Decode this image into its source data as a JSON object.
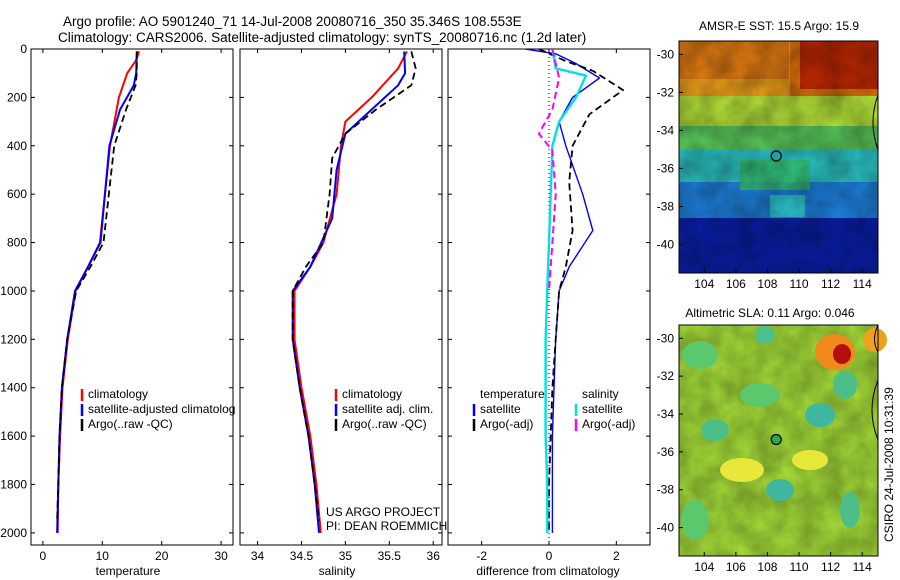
{
  "header": {
    "line1": "Argo profile: AO 5901240_71 14-Jul-2008 20080716_350 35.346S 108.553E",
    "line2": "Climatology: CARS2006. Satellite-adjusted climatology: synTS_20080716.nc (1.2d later)"
  },
  "side_text": "CSIRO 24-Jul-2008 10:31:39",
  "colors": {
    "climatology": "#ff0000",
    "satellite": "#0000ff",
    "argo": "#000000",
    "sat_salinity": "#00e0e0",
    "argo_salinity": "#ff00ff"
  },
  "chart_data": [
    {
      "type": "line",
      "panel": "temperature",
      "xlabel": "temperature",
      "ylabel": "",
      "xlim": [
        -2,
        32
      ],
      "ylim": [
        2050,
        0
      ],
      "xticks": [
        "0",
        "10",
        "20",
        "30"
      ],
      "yticks": [
        "0",
        "200",
        "400",
        "600",
        "800",
        "1000",
        "1200",
        "1400",
        "1600",
        "1800",
        "2000"
      ],
      "legend": [
        "climatology",
        "satellite-adjusted climatolog",
        "Argo(..raw -QC)"
      ],
      "series": [
        {
          "name": "climatology",
          "color": "#ff0000",
          "dash": "",
          "width": 2,
          "points": [
            [
              16.2,
              10
            ],
            [
              15.6,
              50
            ],
            [
              14.2,
              100
            ],
            [
              12.8,
              200
            ],
            [
              11.3,
              400
            ],
            [
              9.6,
              800
            ],
            [
              7.6,
              900
            ],
            [
              5.5,
              1000
            ],
            [
              4.2,
              1200
            ],
            [
              3.3,
              1400
            ],
            [
              2.9,
              1600
            ],
            [
              2.6,
              1800
            ],
            [
              2.5,
              2000
            ]
          ]
        },
        {
          "name": "satellite-adjusted climatolog",
          "color": "#0000ff",
          "dash": "",
          "width": 2,
          "points": [
            [
              15.8,
              10
            ],
            [
              15.7,
              100
            ],
            [
              15.3,
              150
            ],
            [
              13.0,
              250
            ],
            [
              11.2,
              400
            ],
            [
              9.7,
              800
            ],
            [
              7.6,
              900
            ],
            [
              5.4,
              1000
            ],
            [
              4.1,
              1200
            ],
            [
              3.2,
              1400
            ],
            [
              2.8,
              1600
            ],
            [
              2.6,
              1800
            ],
            [
              2.4,
              2000
            ]
          ]
        },
        {
          "name": "Argo(..raw -QC)",
          "color": "#000000",
          "dash": "7,4",
          "width": 1.8,
          "points": [
            [
              15.8,
              10
            ],
            [
              15.8,
              100
            ],
            [
              15.6,
              150
            ],
            [
              14.0,
              250
            ],
            [
              12.0,
              400
            ],
            [
              10.2,
              800
            ],
            [
              8.0,
              900
            ],
            [
              5.6,
              1000
            ],
            [
              4.1,
              1200
            ],
            [
              3.2,
              1400
            ],
            [
              2.8,
              1600
            ],
            [
              2.6,
              1800
            ],
            [
              2.4,
              1950
            ]
          ]
        }
      ]
    },
    {
      "type": "line",
      "panel": "salinity",
      "xlabel": "salinity",
      "xlim": [
        33.8,
        36.1
      ],
      "ylim": [
        2050,
        0
      ],
      "xticks": [
        "34",
        "34.5",
        "35",
        "35.5",
        "36"
      ],
      "legend": [
        "climatology",
        "satellite adj. clim.",
        "Argo(..raw -QC)"
      ],
      "annotation": [
        "US ARGO PROJECT",
        "PI: DEAN ROEMMICH"
      ],
      "series": [
        {
          "name": "climatology",
          "color": "#ff0000",
          "dash": "",
          "width": 2,
          "points": [
            [
              35.7,
              10
            ],
            [
              35.6,
              80
            ],
            [
              35.3,
              200
            ],
            [
              35.0,
              300
            ],
            [
              34.95,
              400
            ],
            [
              34.9,
              600
            ],
            [
              34.75,
              800
            ],
            [
              34.6,
              900
            ],
            [
              34.42,
              1000
            ],
            [
              34.42,
              1200
            ],
            [
              34.5,
              1400
            ],
            [
              34.6,
              1600
            ],
            [
              34.67,
              1800
            ],
            [
              34.72,
              2000
            ]
          ]
        },
        {
          "name": "satellite adj. clim.",
          "color": "#0000ff",
          "dash": "",
          "width": 2,
          "points": [
            [
              35.67,
              10
            ],
            [
              35.68,
              100
            ],
            [
              35.6,
              150
            ],
            [
              35.3,
              250
            ],
            [
              35.0,
              350
            ],
            [
              34.9,
              500
            ],
            [
              34.85,
              700
            ],
            [
              34.6,
              900
            ],
            [
              34.4,
              1000
            ],
            [
              34.4,
              1200
            ],
            [
              34.48,
              1400
            ],
            [
              34.58,
              1600
            ],
            [
              34.65,
              1800
            ],
            [
              34.7,
              2000
            ]
          ]
        },
        {
          "name": "Argo(..raw -QC)",
          "color": "#000000",
          "dash": "7,4",
          "width": 1.8,
          "points": [
            [
              35.75,
              10
            ],
            [
              35.8,
              80
            ],
            [
              35.75,
              150
            ],
            [
              35.35,
              250
            ],
            [
              35.0,
              350
            ],
            [
              34.85,
              450
            ],
            [
              34.82,
              600
            ],
            [
              34.75,
              800
            ],
            [
              34.55,
              900
            ],
            [
              34.4,
              1000
            ],
            [
              34.4,
              1200
            ],
            [
              34.48,
              1400
            ],
            [
              34.58,
              1600
            ],
            [
              34.65,
              1800
            ],
            [
              34.7,
              1950
            ]
          ]
        }
      ]
    },
    {
      "type": "line",
      "panel": "difference",
      "xlabel": "difference from climatology",
      "xlim": [
        -3,
        3
      ],
      "ylim": [
        2050,
        0
      ],
      "xticks": [
        "-2",
        "0",
        "2"
      ],
      "legend_groups": [
        {
          "title": "temperature",
          "items": [
            "satellite",
            "Argo(-adj)"
          ]
        },
        {
          "title": "salinity",
          "items": [
            "satellite",
            "Argo(-adj)"
          ]
        }
      ],
      "series": [
        {
          "name": "temperature satellite",
          "color": "#0000ff",
          "dash": "",
          "width": 1.4,
          "points": [
            [
              -0.7,
              0
            ],
            [
              0.2,
              20
            ],
            [
              0.8,
              60
            ],
            [
              1.5,
              120
            ],
            [
              0.7,
              200
            ],
            [
              0.3,
              300
            ],
            [
              0.5,
              400
            ],
            [
              1.0,
              600
            ],
            [
              1.3,
              750
            ],
            [
              0.6,
              900
            ],
            [
              0.3,
              1000
            ],
            [
              0.2,
              1200
            ],
            [
              0.15,
              1400
            ],
            [
              0.1,
              1600
            ],
            [
              0.1,
              1800
            ],
            [
              0.1,
              2000
            ]
          ]
        },
        {
          "name": "temperature Argo(-adj)",
          "color": "#000000",
          "dash": "7,4",
          "width": 1.8,
          "points": [
            [
              -0.3,
              0
            ],
            [
              0.5,
              50
            ],
            [
              1.3,
              90
            ],
            [
              2.2,
              170
            ],
            [
              1.2,
              270
            ],
            [
              0.7,
              400
            ],
            [
              0.6,
              550
            ],
            [
              0.7,
              750
            ],
            [
              0.5,
              900
            ],
            [
              0.3,
              1000
            ],
            [
              0.2,
              1200
            ],
            [
              0.1,
              1400
            ],
            [
              0.05,
              1600
            ],
            [
              0.0,
              1800
            ],
            [
              0.0,
              2000
            ]
          ]
        },
        {
          "name": "salinity satellite",
          "color": "#00e0e0",
          "dash": "",
          "width": 2.4,
          "points": [
            [
              0.1,
              0
            ],
            [
              0.2,
              80
            ],
            [
              1.1,
              110
            ],
            [
              0.8,
              200
            ],
            [
              0.3,
              300
            ],
            [
              0.1,
              400
            ],
            [
              0.05,
              600
            ],
            [
              0.0,
              800
            ],
            [
              -0.05,
              1000
            ],
            [
              -0.1,
              1200
            ],
            [
              -0.1,
              1400
            ],
            [
              -0.1,
              1600
            ],
            [
              -0.05,
              1800
            ],
            [
              -0.05,
              2000
            ]
          ]
        },
        {
          "name": "salinity Argo(-adj)",
          "color": "#ff00ff",
          "dash": "7,4",
          "width": 2,
          "points": [
            [
              0.1,
              0
            ],
            [
              0.3,
              120
            ],
            [
              0.1,
              250
            ],
            [
              -0.3,
              350
            ],
            [
              0.1,
              420
            ],
            [
              0.2,
              600
            ],
            [
              0.1,
              800
            ],
            [
              0.0,
              1000
            ]
          ]
        }
      ]
    },
    {
      "type": "heatmap",
      "panel": "sst_map",
      "title": "AMSR-E SST: 15.5  Argo: 15.9",
      "xticks": [
        "104",
        "106",
        "108",
        "110",
        "112",
        "114"
      ],
      "yticks": [
        "-30",
        "-32",
        "-34",
        "-36",
        "-38",
        "-40"
      ],
      "xlim": [
        102.4,
        115.0
      ],
      "ylim": [
        -41.5,
        -29.3
      ],
      "marker": {
        "lon": 108.553,
        "lat": -35.346
      }
    },
    {
      "type": "heatmap",
      "panel": "sla_map",
      "title": "Altimetric SLA: 0.11  Argo: 0.046",
      "xticks": [
        "104",
        "106",
        "108",
        "110",
        "112",
        "114"
      ],
      "yticks": [
        "-30",
        "-32",
        "-34",
        "-36",
        "-38",
        "-40"
      ],
      "xlim": [
        102.4,
        115.0
      ],
      "ylim": [
        -41.5,
        -29.3
      ],
      "marker": {
        "lon": 108.553,
        "lat": -35.346
      }
    }
  ]
}
